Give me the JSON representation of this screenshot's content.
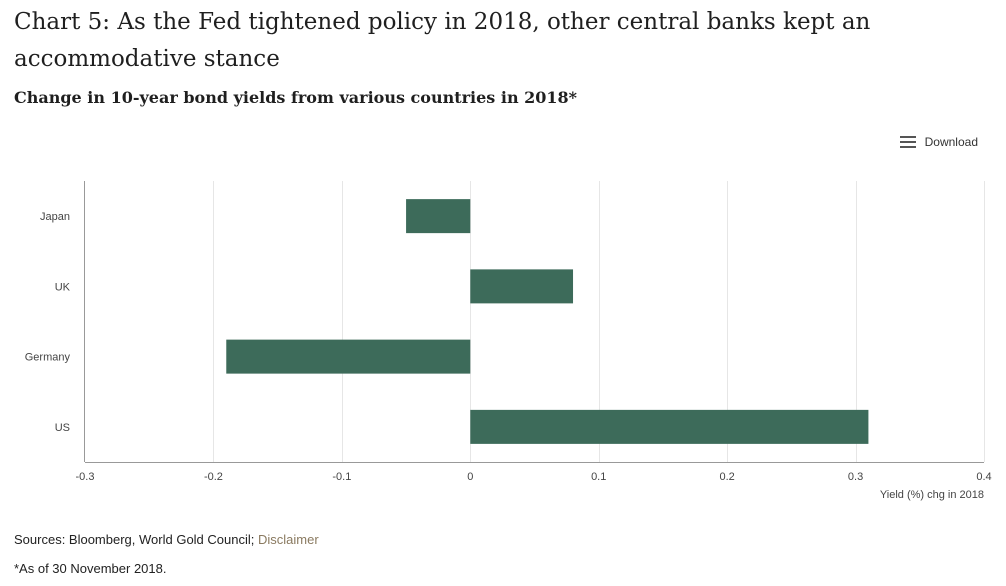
{
  "title": "Chart 5: As the Fed tightened policy in 2018, other central banks kept an accommodative stance",
  "subtitle": "Change in 10-year bond yields from various countries in 2018*",
  "download_label": "Download",
  "icons": {
    "download": "menu-icon"
  },
  "colors": {
    "bar": "#3d6b5a",
    "grid": "#e6e6e6",
    "axis": "#999999"
  },
  "footer": {
    "sources_prefix": "Sources: Bloomberg, World Gold Council; ",
    "disclaimer_link": "Disclaimer",
    "note": "*As of 30 November 2018."
  },
  "chart_data": {
    "type": "bar",
    "orientation": "horizontal",
    "categories": [
      "Japan",
      "UK",
      "Germany",
      "US"
    ],
    "values": [
      -0.05,
      0.08,
      -0.19,
      0.31
    ],
    "xlabel": "Yield (%) chg in 2018",
    "xlim": [
      -0.3,
      0.4
    ],
    "xticks": [
      -0.3,
      -0.2,
      -0.1,
      0,
      0.1,
      0.2,
      0.3,
      0.4
    ],
    "tick_labels": [
      "-0.3",
      "-0.2",
      "-0.1",
      "0",
      "0.1",
      "0.2",
      "0.3",
      "0.4"
    ],
    "grid": true,
    "legend": false
  }
}
